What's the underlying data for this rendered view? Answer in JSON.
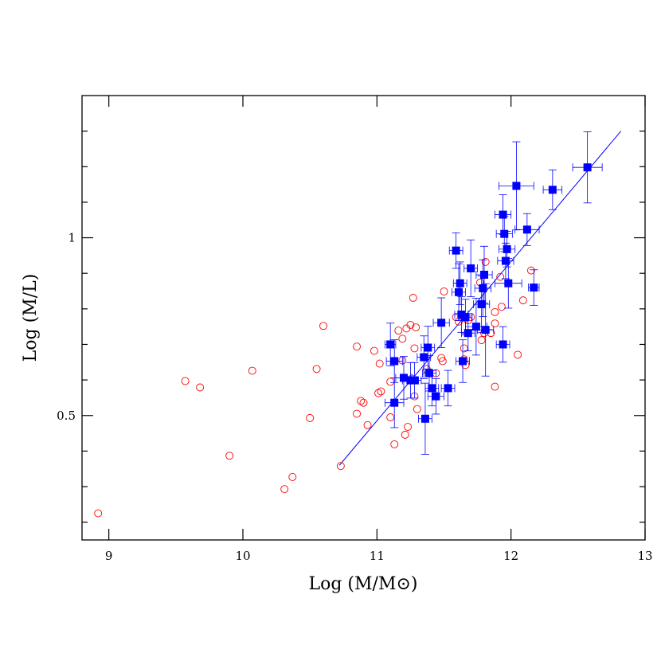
{
  "chart_data": {
    "type": "scatter",
    "xlabel": "Log (M/M⊙)",
    "ylabel": "Log (M/L)",
    "xlim": [
      8.8,
      13
    ],
    "ylim": [
      0.15,
      1.4
    ],
    "xticks": [
      9,
      10,
      11,
      12,
      13
    ],
    "yticks": [
      0.5,
      1
    ],
    "yminorticks": [
      0.2,
      0.3,
      0.4,
      0.6,
      0.7,
      0.8,
      0.9,
      1.1,
      1.2,
      1.3
    ],
    "series": [
      {
        "marker": "open-circle",
        "color": "#ff0000",
        "x": [
          8.92,
          9.57,
          9.68,
          9.9,
          10.07,
          10.31,
          10.37,
          10.5,
          10.55,
          10.6,
          10.73,
          10.85,
          10.85,
          10.88,
          10.9,
          10.93,
          10.98,
          11.01,
          11.03,
          11.02,
          11.1,
          11.1,
          11.13,
          11.16,
          11.19,
          11.19,
          11.21,
          11.23,
          11.22,
          11.25,
          11.26,
          11.28,
          11.29,
          11.27,
          11.28,
          11.3,
          11.37,
          11.44,
          11.48,
          11.49,
          11.5,
          11.59,
          11.61,
          11.64,
          11.66,
          11.68,
          11.7,
          11.65,
          11.66,
          11.65,
          11.77,
          11.78,
          11.8,
          11.81,
          11.85,
          11.88,
          11.88,
          11.93,
          11.92,
          11.88,
          12.05,
          12.09,
          12.15
        ],
        "values": [
          0.225,
          0.597,
          0.579,
          0.387,
          0.626,
          0.293,
          0.327,
          0.493,
          0.631,
          0.752,
          0.358,
          0.694,
          0.505,
          0.541,
          0.536,
          0.473,
          0.682,
          0.563,
          0.568,
          0.646,
          0.595,
          0.495,
          0.419,
          0.739,
          0.716,
          0.655,
          0.446,
          0.468,
          0.745,
          0.755,
          0.604,
          0.689,
          0.748,
          0.831,
          0.554,
          0.518,
          0.631,
          0.619,
          0.662,
          0.653,
          0.849,
          0.777,
          0.764,
          0.777,
          0.773,
          0.768,
          0.777,
          0.689,
          0.642,
          0.658,
          0.874,
          0.712,
          0.732,
          0.932,
          0.732,
          0.791,
          0.759,
          0.806,
          0.89,
          0.581,
          0.671,
          0.824,
          0.908
        ]
      },
      {
        "marker": "filled-square",
        "color": "#0000ff",
        "x": [
          12.57,
          12.31,
          12.04,
          12.12,
          11.94,
          11.95,
          11.97,
          11.96,
          11.98,
          12.17,
          11.94,
          11.59,
          11.7,
          11.8,
          11.62,
          11.61,
          11.79,
          11.78,
          11.63,
          11.66,
          11.68,
          11.74,
          11.81,
          11.48,
          11.1,
          11.13,
          11.38,
          11.35,
          11.64,
          11.39,
          11.2,
          11.25,
          11.28,
          11.41,
          11.53,
          11.44,
          11.13,
          11.36
        ],
        "values": [
          1.198,
          1.135,
          1.146,
          1.023,
          1.065,
          1.011,
          0.968,
          0.935,
          0.872,
          0.86,
          0.7,
          0.964,
          0.914,
          0.896,
          0.872,
          0.847,
          0.858,
          0.813,
          0.784,
          0.777,
          0.732,
          0.75,
          0.741,
          0.761,
          0.7,
          0.653,
          0.691,
          0.664,
          0.653,
          0.619,
          0.606,
          0.599,
          0.599,
          0.577,
          0.577,
          0.554,
          0.536,
          0.491
        ],
        "xerr": [
          0.11,
          0.07,
          0.13,
          0.09,
          0.06,
          0.06,
          0.06,
          0.06,
          0.1,
          0.04,
          0.05,
          0.05,
          0.05,
          0.06,
          0.05,
          0.05,
          0.06,
          0.06,
          0.05,
          0.05,
          0.05,
          0.08,
          0.06,
          0.06,
          0.04,
          0.06,
          0.05,
          0.05,
          0.05,
          0.05,
          0.06,
          0.06,
          0.05,
          0.05,
          0.05,
          0.06,
          0.07,
          0.05
        ],
        "yerr": [
          0.1,
          0.056,
          0.124,
          0.045,
          0.056,
          0.05,
          0.05,
          0.05,
          0.07,
          0.05,
          0.05,
          0.05,
          0.08,
          0.08,
          0.06,
          0.08,
          0.08,
          0.08,
          0.05,
          0.05,
          0.05,
          0.08,
          0.13,
          0.07,
          0.06,
          0.06,
          0.06,
          0.06,
          0.06,
          0.05,
          0.06,
          0.05,
          0.05,
          0.05,
          0.05,
          0.05,
          0.07,
          0.1
        ]
      }
    ],
    "fit": {
      "color": "#0000ff",
      "x": [
        10.72,
        12.82
      ],
      "values": [
        0.36,
        1.3
      ]
    }
  }
}
